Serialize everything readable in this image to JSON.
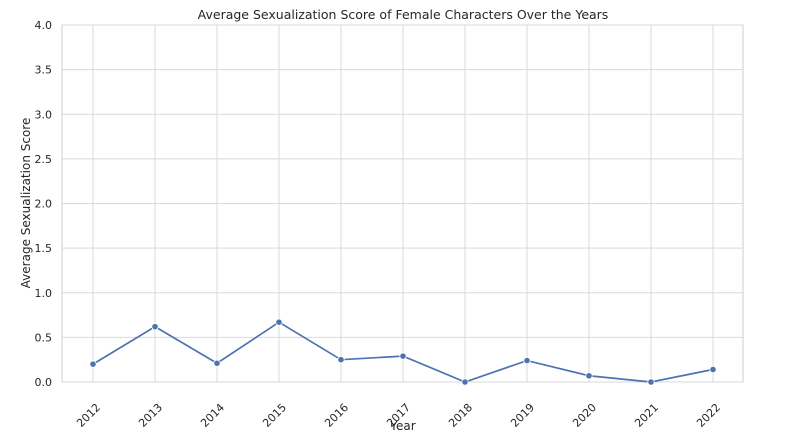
{
  "chart_data": {
    "type": "line",
    "title": "Average Sexualization Score of Female Characters Over the Years",
    "xlabel": "Year",
    "ylabel": "Average Sexualization Score",
    "x": [
      "2012",
      "2013",
      "2014",
      "2015",
      "2016",
      "2017",
      "2018",
      "2019",
      "2020",
      "2021",
      "2022"
    ],
    "values": [
      0.2,
      0.62,
      0.21,
      0.67,
      0.25,
      0.29,
      0.0,
      0.24,
      0.07,
      0.0,
      0.14
    ],
    "ylim": [
      0,
      4
    ],
    "yticks": [
      "0.0",
      "0.5",
      "1.0",
      "1.5",
      "2.0",
      "2.5",
      "3.0",
      "3.5",
      "4.0"
    ],
    "grid": true,
    "colors": {
      "line": "#4c72b0",
      "grid": "#d9d9d9",
      "frame": "#cccccc",
      "text": "#262626"
    }
  }
}
